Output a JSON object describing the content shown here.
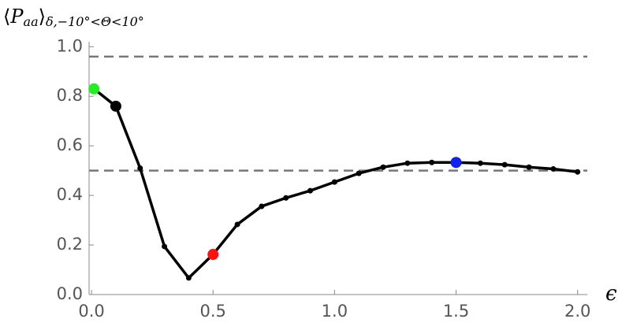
{
  "chart_data": {
    "type": "line",
    "ylabel": {
      "open": "⟨",
      "main": "P",
      "sub": "aa",
      "close": "⟩",
      "subscript": "δ,−10°<Θ<10°"
    },
    "xlabel": "ϵ",
    "x": [
      0.01,
      0.1,
      0.2,
      0.3,
      0.4,
      0.5,
      0.6,
      0.7,
      0.8,
      0.9,
      1.0,
      1.1,
      1.2,
      1.3,
      1.4,
      1.5,
      1.6,
      1.7,
      1.8,
      1.9,
      2.0
    ],
    "series": [
      {
        "color": "#000000",
        "values": [
          0.83,
          0.76,
          0.51,
          0.194,
          0.067,
          0.162,
          0.283,
          0.356,
          0.39,
          0.419,
          0.454,
          0.489,
          0.514,
          0.53,
          0.533,
          0.533,
          0.53,
          0.524,
          0.514,
          0.507,
          0.495
        ]
      }
    ],
    "highlights": [
      {
        "x": 0.01,
        "value": 0.83,
        "color": "#22ee22"
      },
      {
        "x": 0.1,
        "value": 0.76,
        "color": "#000000"
      },
      {
        "x": 0.5,
        "value": 0.162,
        "color": "#ff1111"
      },
      {
        "x": 1.5,
        "value": 0.533,
        "color": "#1122ee"
      }
    ],
    "hlines": [
      0.96,
      0.5
    ],
    "hline_color": "#777777",
    "xlim": [
      -0.01,
      2.04
    ],
    "ylim": [
      0,
      1.02
    ],
    "xticks": [
      {
        "value": 0,
        "label": "0.0"
      },
      {
        "value": 0.5,
        "label": "0.5"
      },
      {
        "value": 1.0,
        "label": "1.0"
      },
      {
        "value": 1.5,
        "label": "1.5"
      },
      {
        "value": 2.0,
        "label": "2.0"
      }
    ],
    "yticks": [
      {
        "value": 0,
        "label": "0.0"
      },
      {
        "value": 0.2,
        "label": "0.2"
      },
      {
        "value": 0.4,
        "label": "0.4"
      },
      {
        "value": 0.6,
        "label": "0.6"
      },
      {
        "value": 0.8,
        "label": "0.8"
      },
      {
        "value": 1.0,
        "label": "1.0"
      }
    ]
  }
}
